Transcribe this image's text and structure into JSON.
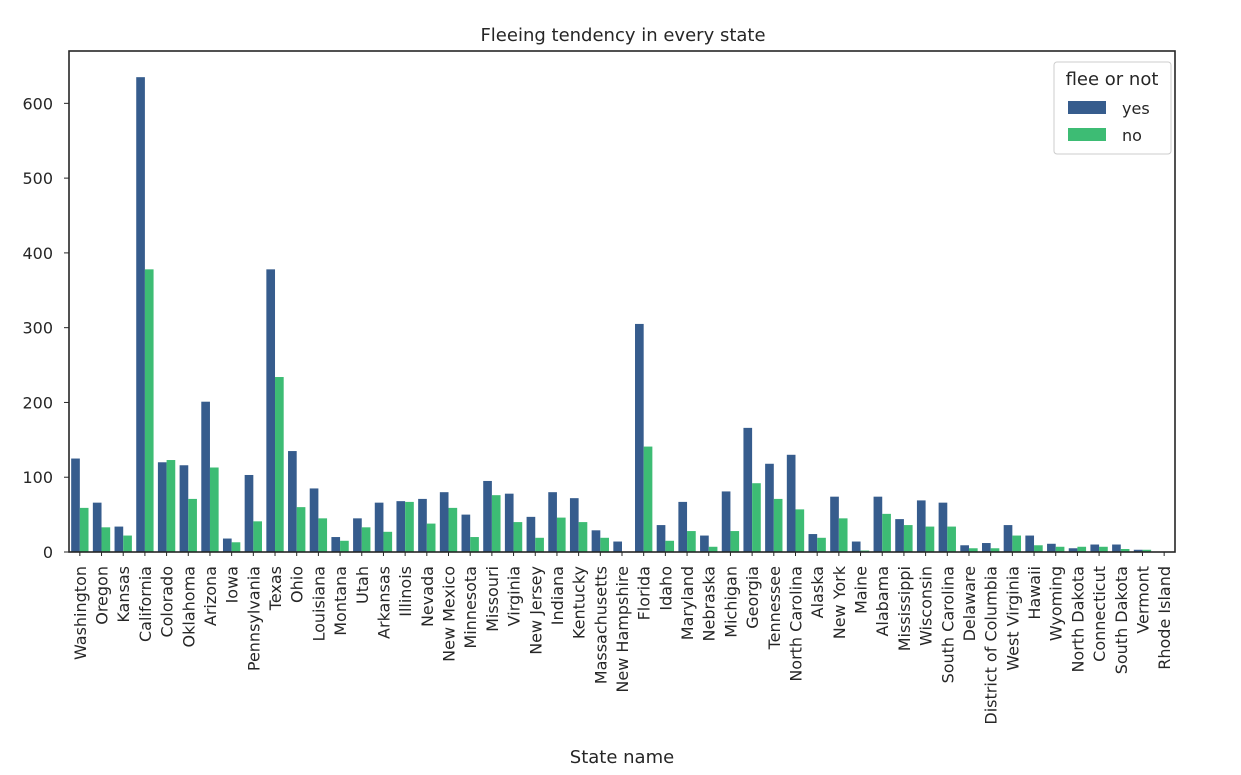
{
  "chart_data": {
    "type": "bar",
    "title": "Fleeing tendency in every state",
    "xlabel": "State name",
    "ylabel": "",
    "ylim": [
      0,
      670
    ],
    "yticks": [
      0,
      100,
      200,
      300,
      400,
      500,
      600
    ],
    "grid": false,
    "legend": {
      "title": "flee or not",
      "position": "top-right"
    },
    "categories": [
      "Washington",
      "Oregon",
      "Kansas",
      "California",
      "Colorado",
      "Oklahoma",
      "Arizona",
      "Iowa",
      "Pennsylvania",
      "Texas",
      "Ohio",
      "Louisiana",
      "Montana",
      "Utah",
      "Arkansas",
      "Illinois",
      "Nevada",
      "New Mexico",
      "Minnesota",
      "Missouri",
      "Virginia",
      "New Jersey",
      "Indiana",
      "Kentucky",
      "Massachusetts",
      "New Hampshire",
      "Florida",
      "Idaho",
      "Maryland",
      "Nebraska",
      "Michigan",
      "Georgia",
      "Tennessee",
      "North Carolina",
      "Alaska",
      "New York",
      "Maine",
      "Alabama",
      "Mississippi",
      "Wisconsin",
      "South Carolina",
      "Delaware",
      "District of Columbia",
      "West Virginia",
      "Hawaii",
      "Wyoming",
      "North Dakota",
      "Connecticut",
      "South Dakota",
      "Vermont",
      "Rhode Island"
    ],
    "series": [
      {
        "name": "yes",
        "color": "#365c8d",
        "values": [
          125,
          66,
          34,
          635,
          120,
          116,
          201,
          18,
          103,
          378,
          135,
          85,
          20,
          45,
          66,
          68,
          71,
          80,
          50,
          95,
          78,
          47,
          80,
          72,
          29,
          14,
          305,
          36,
          67,
          22,
          81,
          166,
          118,
          130,
          24,
          74,
          14,
          74,
          44,
          69,
          66,
          9,
          12,
          36,
          22,
          11,
          5,
          10,
          10,
          3,
          0
        ]
      },
      {
        "name": "no",
        "color": "#3dbc74",
        "values": [
          59,
          33,
          22,
          378,
          123,
          71,
          113,
          13,
          41,
          234,
          60,
          45,
          15,
          33,
          27,
          67,
          38,
          59,
          20,
          76,
          40,
          19,
          46,
          40,
          19,
          0,
          141,
          15,
          28,
          7,
          28,
          92,
          71,
          57,
          19,
          45,
          2,
          51,
          36,
          34,
          34,
          5,
          5,
          22,
          9,
          7,
          7,
          7,
          4,
          3,
          0
        ]
      }
    ]
  }
}
